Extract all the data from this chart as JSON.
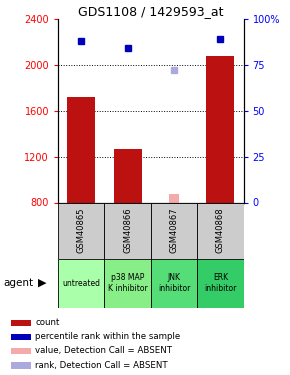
{
  "title": "GDS1108 / 1429593_at",
  "samples": [
    "GSM40865",
    "GSM40866",
    "GSM40867",
    "GSM40868"
  ],
  "agents": [
    "untreated",
    "p38 MAP\nK inhibitor",
    "JNK\ninhibitor",
    "ERK\ninhibitor"
  ],
  "bar_values": [
    1720,
    1270,
    null,
    2080
  ],
  "bar_color": "#bb1111",
  "absent_bar_value": 870,
  "absent_bar_color": "#f5aaaa",
  "rank_values": [
    88,
    84,
    null,
    89
  ],
  "rank_color": "#0000bb",
  "absent_rank_value": 72,
  "absent_rank_color": "#aaaadd",
  "ylim_left": [
    800,
    2400
  ],
  "ylim_right": [
    0,
    100
  ],
  "yticks_left": [
    800,
    1200,
    1600,
    2000,
    2400
  ],
  "yticks_right": [
    0,
    25,
    50,
    75,
    100
  ],
  "ytick_labels_right": [
    "0",
    "25",
    "50",
    "75",
    "100%"
  ],
  "grid_values": [
    1200,
    1600,
    2000
  ],
  "agent_colors": [
    "#aaffaa",
    "#88ee88",
    "#55dd77",
    "#33cc66"
  ],
  "sample_bg_color": "#cccccc",
  "legend_items": [
    {
      "color": "#bb1111",
      "label": "count"
    },
    {
      "color": "#0000bb",
      "label": "percentile rank within the sample"
    },
    {
      "color": "#f5aaaa",
      "label": "value, Detection Call = ABSENT"
    },
    {
      "color": "#aaaadd",
      "label": "rank, Detection Call = ABSENT"
    }
  ]
}
